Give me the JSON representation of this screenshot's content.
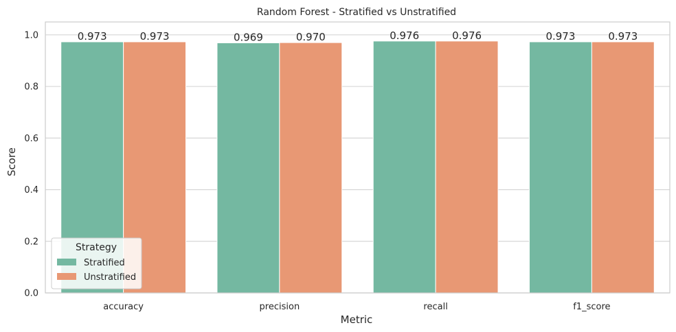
{
  "chart_data": {
    "type": "bar",
    "title": "Random Forest - Stratified vs Unstratified",
    "xlabel": "Metric",
    "ylabel": "Score",
    "categories": [
      "accuracy",
      "precision",
      "recall",
      "f1_score"
    ],
    "series": [
      {
        "name": "Stratified",
        "values": [
          0.973,
          0.969,
          0.976,
          0.973
        ],
        "labels": [
          "0.973",
          "0.969",
          "0.976",
          "0.973"
        ],
        "color": "#74b8a1"
      },
      {
        "name": "Unstratified",
        "values": [
          0.973,
          0.97,
          0.976,
          0.973
        ],
        "labels": [
          "0.973",
          "0.970",
          "0.976",
          "0.973"
        ],
        "color": "#e89874"
      }
    ],
    "ylim": [
      0,
      1.05
    ],
    "yticks": [
      0.0,
      0.2,
      0.4,
      0.6,
      0.8,
      1.0
    ],
    "ytick_labels": [
      "0.0",
      "0.2",
      "0.4",
      "0.6",
      "0.8",
      "1.0"
    ],
    "grid": true,
    "legend": {
      "title": "Strategy",
      "placement": "lower-left"
    }
  }
}
